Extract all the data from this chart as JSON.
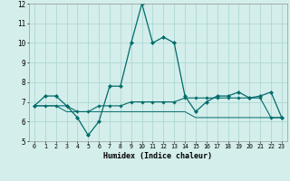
{
  "xlabel": "Humidex (Indice chaleur)",
  "background_color": "#d4eeeb",
  "grid_color": "#aed8d4",
  "line_color": "#006b6b",
  "xlim": [
    -0.5,
    23.5
  ],
  "ylim": [
    5,
    12
  ],
  "yticks": [
    5,
    6,
    7,
    8,
    9,
    10,
    11,
    12
  ],
  "xticks": [
    0,
    1,
    2,
    3,
    4,
    5,
    6,
    7,
    8,
    9,
    10,
    11,
    12,
    13,
    14,
    15,
    16,
    17,
    18,
    19,
    20,
    21,
    22,
    23
  ],
  "series1_x": [
    0,
    1,
    2,
    3,
    4,
    5,
    6,
    7,
    8,
    9,
    10,
    11,
    12,
    13,
    14,
    15,
    16,
    17,
    18,
    19,
    20,
    21,
    22,
    23
  ],
  "series1_y": [
    6.8,
    7.3,
    7.3,
    6.8,
    6.2,
    5.3,
    6.0,
    7.8,
    7.8,
    10.0,
    12.0,
    10.0,
    10.3,
    10.0,
    7.3,
    6.5,
    7.0,
    7.3,
    7.3,
    7.5,
    7.2,
    7.3,
    7.5,
    6.2
  ],
  "series2_x": [
    0,
    1,
    2,
    3,
    4,
    5,
    6,
    7,
    8,
    9,
    10,
    11,
    12,
    13,
    14,
    15,
    16,
    17,
    18,
    19,
    20,
    21,
    22,
    23
  ],
  "series2_y": [
    6.8,
    6.8,
    6.8,
    6.8,
    6.5,
    6.5,
    6.8,
    6.8,
    6.8,
    7.0,
    7.0,
    7.0,
    7.0,
    7.0,
    7.2,
    7.2,
    7.2,
    7.2,
    7.2,
    7.2,
    7.2,
    7.2,
    6.2,
    6.2
  ],
  "series3_x": [
    0,
    1,
    2,
    3,
    4,
    5,
    6,
    7,
    8,
    9,
    10,
    11,
    12,
    13,
    14,
    15,
    16,
    17,
    18,
    19,
    20,
    21,
    22,
    23
  ],
  "series3_y": [
    6.8,
    6.8,
    6.8,
    6.5,
    6.5,
    6.5,
    6.5,
    6.5,
    6.5,
    6.5,
    6.5,
    6.5,
    6.5,
    6.5,
    6.5,
    6.2,
    6.2,
    6.2,
    6.2,
    6.2,
    6.2,
    6.2,
    6.2,
    6.2
  ]
}
